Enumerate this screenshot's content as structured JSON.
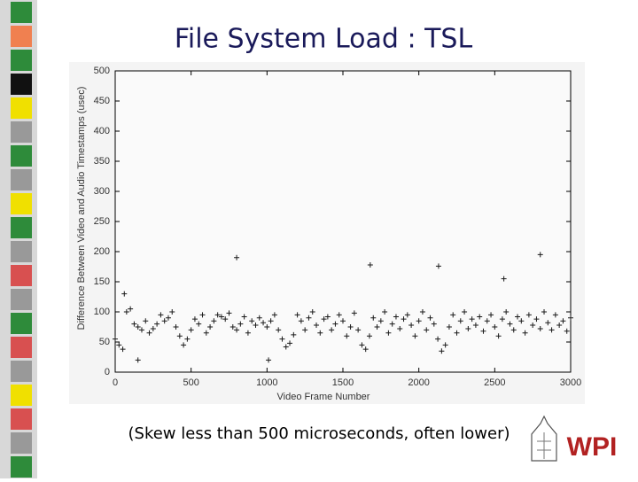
{
  "chart_data": {
    "type": "scatter",
    "title": "File System Load : TSL",
    "x_label": "Video Frame Number",
    "y_label": "Difference Between Video and Audio Timestamps (usec)",
    "caption": "(Skew less than 500 microseconds, often lower)",
    "logo": "WPI",
    "color": "#1a1a1a",
    "xlim": [
      0,
      3000
    ],
    "ylim": [
      0,
      500
    ],
    "xticks": [
      0,
      500,
      1000,
      1500,
      2000,
      2500,
      3000
    ],
    "yticks": [
      0,
      50,
      100,
      150,
      200,
      250,
      300,
      350,
      400,
      450,
      500
    ],
    "x": [
      0,
      25,
      50,
      75,
      100,
      125,
      150,
      175,
      200,
      225,
      250,
      275,
      300,
      325,
      350,
      375,
      400,
      425,
      450,
      475,
      500,
      525,
      550,
      575,
      600,
      625,
      650,
      675,
      700,
      725,
      750,
      775,
      800,
      825,
      850,
      875,
      900,
      925,
      950,
      975,
      1000,
      1025,
      1050,
      1075,
      1100,
      1125,
      1150,
      1175,
      1200,
      1225,
      1250,
      1275,
      1300,
      1325,
      1350,
      1375,
      1400,
      1425,
      1450,
      1475,
      1500,
      1525,
      1550,
      1575,
      1600,
      1625,
      1650,
      1675,
      1700,
      1725,
      1750,
      1775,
      1800,
      1825,
      1850,
      1875,
      1900,
      1925,
      1950,
      1975,
      2000,
      2025,
      2050,
      2075,
      2100,
      2125,
      2150,
      2175,
      2200,
      2225,
      2250,
      2275,
      2300,
      2325,
      2350,
      2375,
      2400,
      2425,
      2450,
      2475,
      2500,
      2525,
      2550,
      2575,
      2600,
      2625,
      2650,
      2675,
      2700,
      2725,
      2750,
      2775,
      2800,
      2825,
      2850,
      2875,
      2900,
      2925,
      2950,
      2975,
      3000,
      800,
      1680,
      2130,
      2560,
      2800,
      60,
      150,
      1010
    ],
    "values": [
      55,
      45,
      38,
      100,
      105,
      80,
      75,
      70,
      85,
      65,
      72,
      80,
      95,
      85,
      90,
      100,
      75,
      60,
      45,
      55,
      70,
      88,
      80,
      95,
      65,
      75,
      85,
      95,
      92,
      88,
      98,
      75,
      70,
      80,
      92,
      65,
      85,
      78,
      90,
      82,
      75,
      85,
      95,
      70,
      55,
      42,
      48,
      62,
      95,
      85,
      70,
      90,
      100,
      78,
      65,
      88,
      92,
      70,
      80,
      95,
      85,
      60,
      75,
      98,
      70,
      45,
      38,
      60,
      90,
      75,
      85,
      100,
      65,
      80,
      92,
      72,
      88,
      95,
      78,
      60,
      85,
      100,
      70,
      90,
      80,
      55,
      35,
      45,
      75,
      95,
      65,
      85,
      100,
      72,
      88,
      78,
      92,
      68,
      85,
      95,
      75,
      60,
      88,
      100,
      80,
      70,
      92,
      85,
      65,
      95,
      78,
      88,
      72,
      100,
      82,
      70,
      95,
      78,
      85,
      68,
      90,
      190,
      178,
      176,
      155,
      195,
      130,
      20,
      20
    ]
  }
}
